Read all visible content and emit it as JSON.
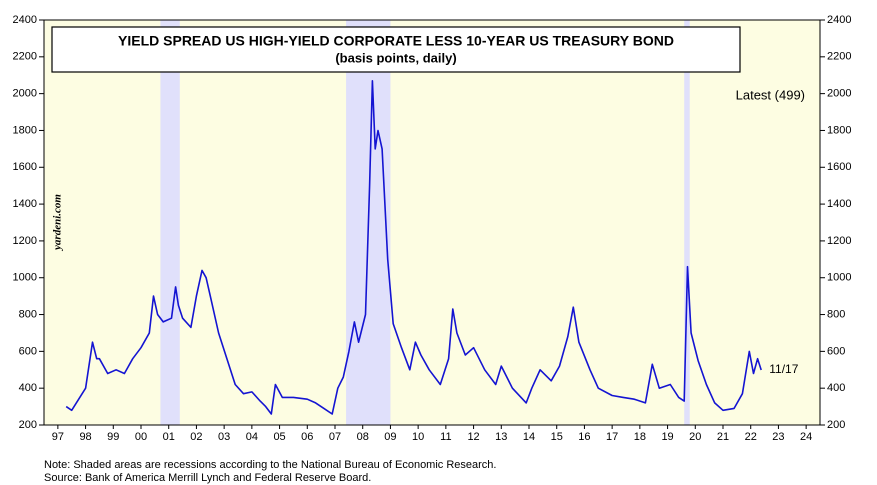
{
  "chart_data": {
    "type": "line",
    "title": "YIELD SPREAD US HIGH-YIELD CORPORATE LESS 10-YEAR US TREASURY BOND",
    "subtitle": "(basis points, daily)",
    "annotation": "Latest (499)",
    "end_label": "11/17",
    "watermark": "yardeni.com",
    "notes": [
      "Note: Shaded areas are recessions according to the National Bureau of Economic Research.",
      "Source: Bank of America Merrill Lynch and Federal Reserve Board."
    ],
    "recessions": [
      [
        2001.2,
        2001.9
      ],
      [
        2007.9,
        2009.5
      ],
      [
        2020.1,
        2020.3
      ]
    ],
    "x": [
      1997.8,
      1998.0,
      1998.5,
      1998.75,
      1998.9,
      1999.0,
      1999.3,
      1999.6,
      1999.9,
      2000.2,
      2000.5,
      2000.8,
      2000.95,
      2001.1,
      2001.3,
      2001.6,
      2001.75,
      2001.85,
      2002.0,
      2002.3,
      2002.5,
      2002.7,
      2002.85,
      2003.0,
      2003.3,
      2003.6,
      2003.9,
      2004.2,
      2004.5,
      2004.8,
      2005.0,
      2005.2,
      2005.35,
      2005.6,
      2006.0,
      2006.5,
      2006.8,
      2007.1,
      2007.4,
      2007.6,
      2007.8,
      2008.0,
      2008.2,
      2008.35,
      2008.6,
      2008.75,
      2008.85,
      2008.95,
      2009.05,
      2009.2,
      2009.4,
      2009.6,
      2009.9,
      2010.2,
      2010.4,
      2010.6,
      2010.9,
      2011.3,
      2011.6,
      2011.75,
      2011.9,
      2012.2,
      2012.5,
      2012.9,
      2013.3,
      2013.5,
      2013.9,
      2014.4,
      2014.6,
      2014.9,
      2015.3,
      2015.6,
      2015.9,
      2016.1,
      2016.3,
      2016.7,
      2017.0,
      2017.5,
      2017.9,
      2018.3,
      2018.7,
      2018.95,
      2019.2,
      2019.6,
      2019.9,
      2020.1,
      2020.22,
      2020.35,
      2020.6,
      2020.9,
      2021.2,
      2021.5,
      2021.9,
      2022.2,
      2022.45,
      2022.6,
      2022.75,
      2022.88
    ],
    "series": [
      {
        "name": "High-yield spread",
        "color": "#1414d2",
        "values": [
          300,
          280,
          400,
          650,
          560,
          560,
          480,
          500,
          480,
          560,
          620,
          700,
          900,
          800,
          760,
          780,
          950,
          850,
          780,
          730,
          900,
          1040,
          1000,
          900,
          700,
          560,
          420,
          370,
          380,
          330,
          300,
          260,
          420,
          350,
          350,
          340,
          320,
          290,
          260,
          400,
          460,
          600,
          760,
          650,
          800,
          1500,
          2070,
          1700,
          1800,
          1700,
          1100,
          750,
          620,
          500,
          650,
          580,
          500,
          420,
          560,
          830,
          700,
          580,
          620,
          500,
          420,
          520,
          400,
          320,
          400,
          500,
          440,
          520,
          680,
          840,
          650,
          500,
          400,
          360,
          350,
          340,
          320,
          530,
          400,
          420,
          350,
          330,
          1060,
          700,
          550,
          420,
          320,
          280,
          290,
          370,
          600,
          480,
          560,
          499
        ]
      }
    ],
    "xlim": [
      1997,
      2025
    ],
    "xticks": [
      {
        "value": 1997.5,
        "label": "97"
      },
      {
        "value": 1998.5,
        "label": "98"
      },
      {
        "value": 1999.5,
        "label": "99"
      },
      {
        "value": 2000.5,
        "label": "00"
      },
      {
        "value": 2001.5,
        "label": "01"
      },
      {
        "value": 2002.5,
        "label": "02"
      },
      {
        "value": 2003.5,
        "label": "03"
      },
      {
        "value": 2004.5,
        "label": "04"
      },
      {
        "value": 2005.5,
        "label": "05"
      },
      {
        "value": 2006.5,
        "label": "06"
      },
      {
        "value": 2007.5,
        "label": "07"
      },
      {
        "value": 2008.5,
        "label": "08"
      },
      {
        "value": 2009.5,
        "label": "09"
      },
      {
        "value": 2010.5,
        "label": "10"
      },
      {
        "value": 2011.5,
        "label": "11"
      },
      {
        "value": 2012.5,
        "label": "12"
      },
      {
        "value": 2013.5,
        "label": "13"
      },
      {
        "value": 2014.5,
        "label": "14"
      },
      {
        "value": 2015.5,
        "label": "15"
      },
      {
        "value": 2016.5,
        "label": "16"
      },
      {
        "value": 2017.5,
        "label": "17"
      },
      {
        "value": 2018.5,
        "label": "18"
      },
      {
        "value": 2019.5,
        "label": "19"
      },
      {
        "value": 2020.5,
        "label": "20"
      },
      {
        "value": 2021.5,
        "label": "21"
      },
      {
        "value": 2022.5,
        "label": "22"
      },
      {
        "value": 2023.5,
        "label": "23"
      },
      {
        "value": 2024.5,
        "label": "24"
      }
    ],
    "ylim": [
      200,
      2400
    ],
    "yticks": [
      200,
      400,
      600,
      800,
      1000,
      1200,
      1400,
      1600,
      1800,
      2000,
      2200,
      2400
    ],
    "background": "#fdfde2",
    "recession_color": "#e0e0fb"
  }
}
